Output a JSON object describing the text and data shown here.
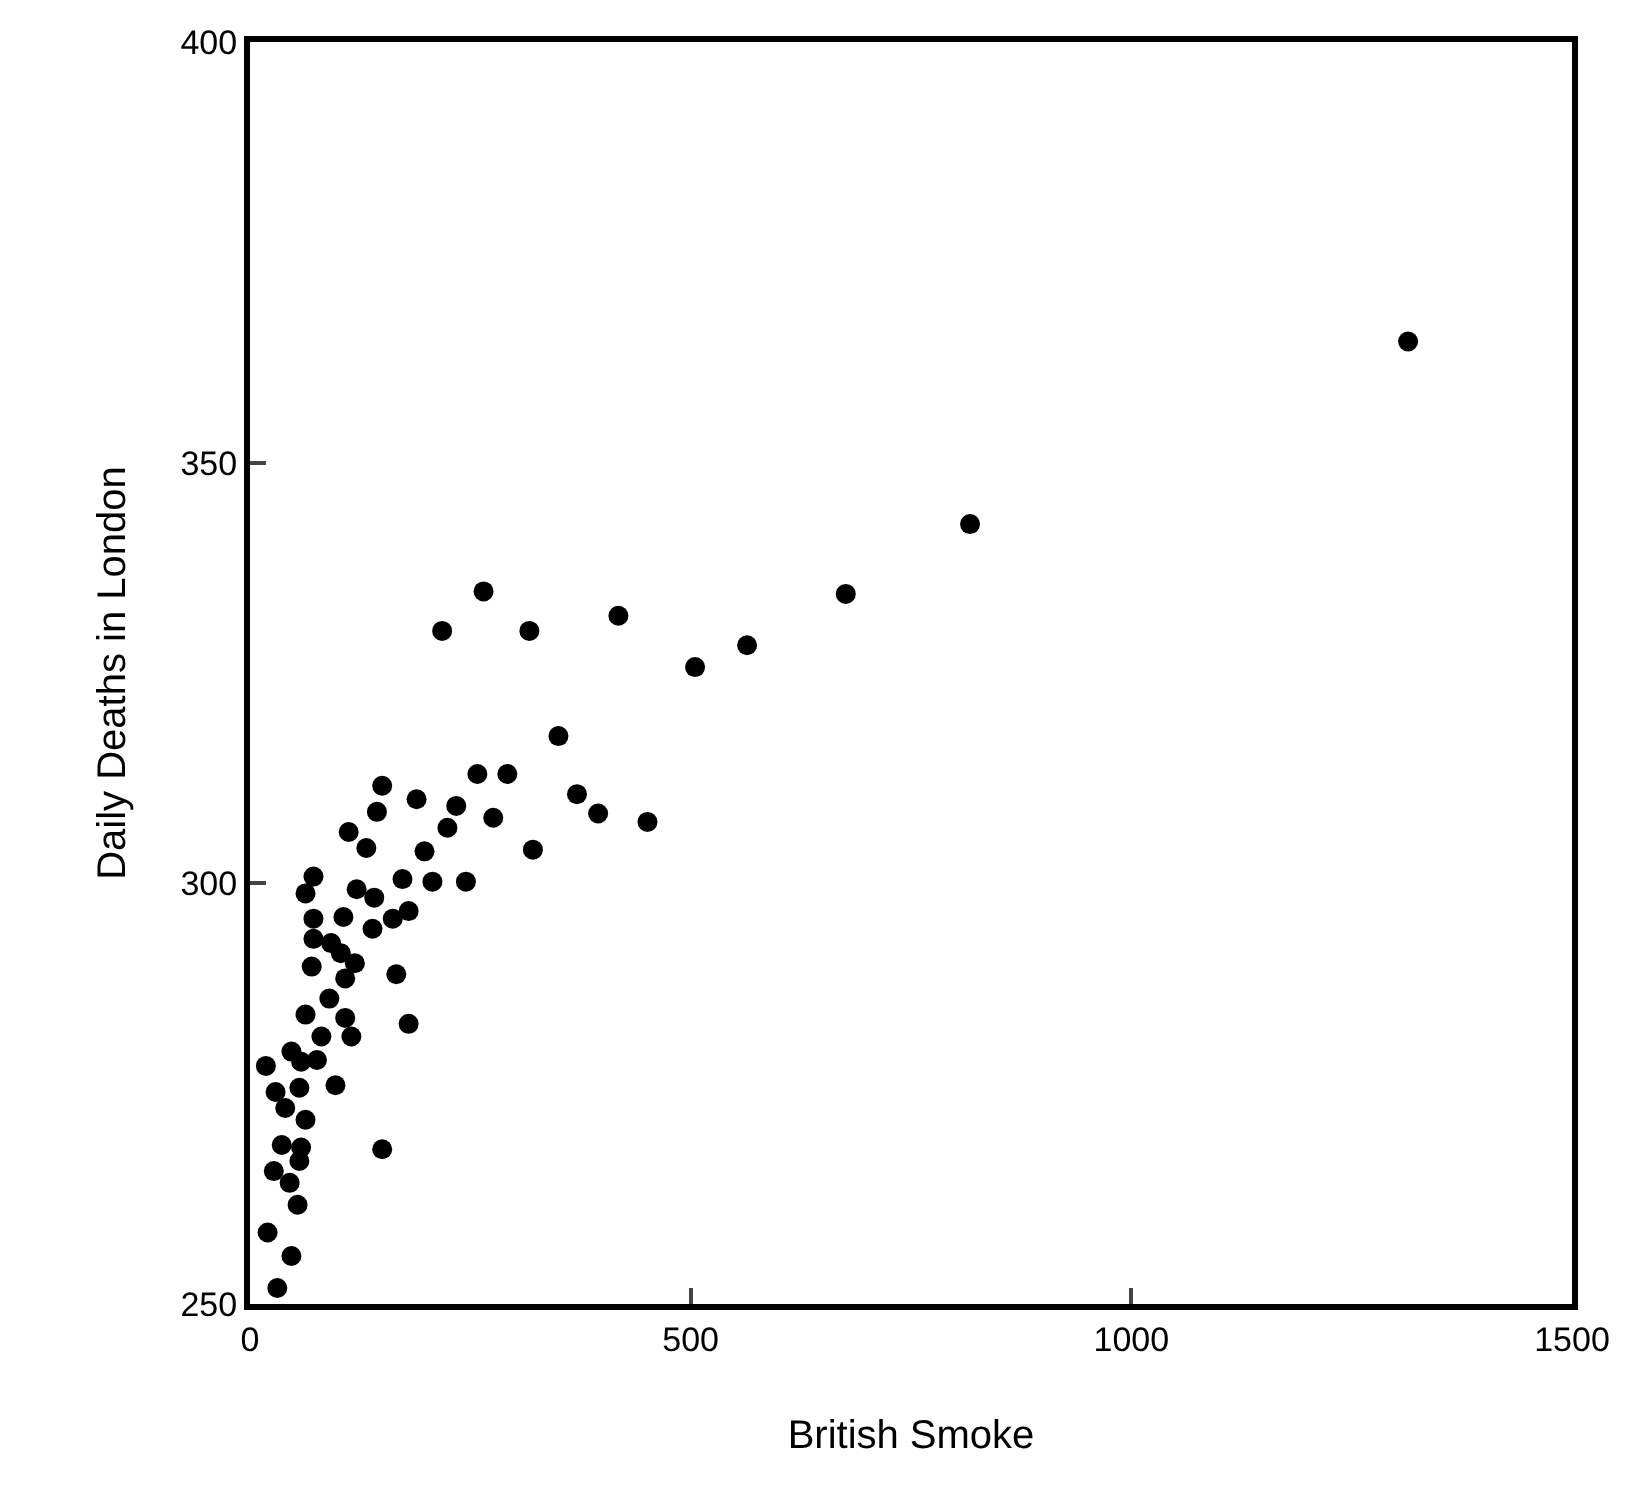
{
  "chart_data": {
    "type": "scatter",
    "xlabel": "British Smoke",
    "ylabel": "Daily Deaths in London",
    "x": [
      1314,
      817,
      676,
      564,
      505,
      418,
      317,
      265,
      218,
      350,
      258,
      292,
      150,
      189,
      234,
      144,
      371,
      395,
      451,
      276,
      224,
      112,
      132,
      198,
      321,
      72,
      173,
      207,
      245,
      121,
      63,
      141,
      139,
      162,
      180,
      106,
      72,
      72,
      92,
      103,
      119,
      70,
      108,
      166,
      90,
      63,
      108,
      180,
      81,
      115,
      18,
      47,
      58,
      76,
      97,
      29,
      56,
      40,
      63,
      150,
      36,
      58,
      56,
      27,
      45,
      54,
      20,
      47,
      31
    ],
    "values": [
      364.4,
      342.7,
      334.4,
      328.3,
      325.7,
      331.8,
      330,
      334.7,
      330,
      317.5,
      313,
      313,
      311.6,
      310,
      309.2,
      308.5,
      310.6,
      308.3,
      307.3,
      307.8,
      306.6,
      306.1,
      304.2,
      303.8,
      304,
      300.8,
      300.5,
      300.2,
      300.2,
      299.3,
      298.8,
      298.3,
      294.6,
      295.8,
      296.7,
      296,
      295.8,
      293.4,
      292.9,
      291.7,
      290.5,
      290.1,
      288.7,
      289.2,
      286.3,
      284.4,
      284,
      283.3,
      281.8,
      281.8,
      278.3,
      280,
      278.8,
      279,
      276,
      275.2,
      275.7,
      273.3,
      271.9,
      268.4,
      268.9,
      268.6,
      267,
      265.8,
      264.4,
      261.8,
      258.5,
      255.7,
      251.9
    ],
    "color": "#000000",
    "marker": "circle",
    "xlim": [
      0,
      1500
    ],
    "xticks": [
      0,
      500,
      1000,
      1500
    ],
    "ylim": [
      250,
      400
    ],
    "yticks": [
      250,
      300,
      350,
      400
    ]
  }
}
